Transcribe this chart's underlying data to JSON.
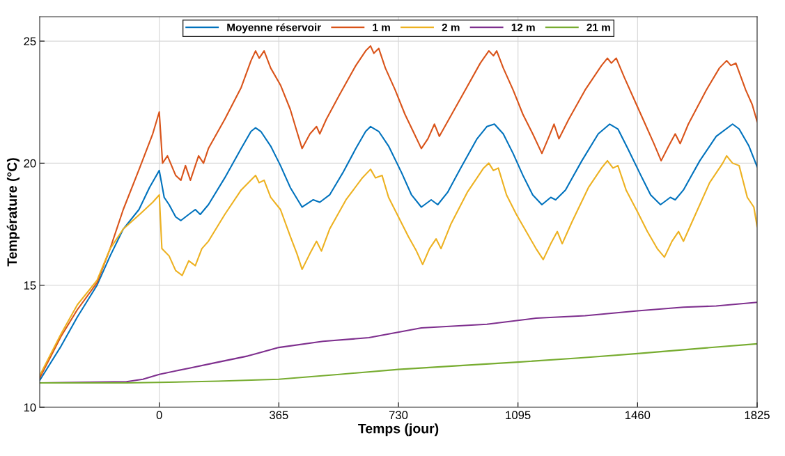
{
  "chart_data": {
    "type": "line",
    "xlabel": "Temps (jour)",
    "ylabel": "Température (°C)",
    "xlim": [
      -365,
      1825
    ],
    "ylim": [
      10,
      26
    ],
    "xticks": [
      0,
      365,
      730,
      1095,
      1460,
      1825
    ],
    "yticks": [
      10,
      15,
      20,
      25
    ],
    "grid": true,
    "legend": "top",
    "line_style": "solid",
    "marker": "none",
    "series": [
      {
        "name": "Moyenne réservoir",
        "color": "#0072bd",
        "x": [
          -365,
          -300,
          -250,
          -190,
          -150,
          -110,
          -62,
          -30,
          0,
          15,
          30,
          50,
          66,
          90,
          110,
          125,
          150,
          200,
          250,
          280,
          294,
          310,
          340,
          370,
          400,
          436,
          470,
          490,
          520,
          560,
          600,
          630,
          645,
          670,
          700,
          740,
          770,
          800,
          830,
          850,
          880,
          920,
          970,
          1000,
          1023,
          1050,
          1080,
          1110,
          1140,
          1168,
          1195,
          1210,
          1240,
          1290,
          1340,
          1375,
          1400,
          1430,
          1470,
          1500,
          1530,
          1560,
          1575,
          1600,
          1650,
          1700,
          1750,
          1770,
          1800,
          1825
        ],
        "values": [
          11.1,
          12.5,
          13.7,
          15.0,
          16.2,
          17.3,
          18.1,
          19.0,
          19.7,
          18.6,
          18.3,
          17.8,
          17.65,
          17.9,
          18.1,
          17.9,
          18.3,
          19.4,
          20.6,
          21.3,
          21.45,
          21.3,
          20.7,
          19.9,
          19.0,
          18.2,
          18.5,
          18.4,
          18.7,
          19.6,
          20.6,
          21.3,
          21.5,
          21.3,
          20.7,
          19.6,
          18.7,
          18.2,
          18.5,
          18.3,
          18.8,
          19.8,
          21.0,
          21.5,
          21.6,
          21.2,
          20.4,
          19.5,
          18.7,
          18.3,
          18.6,
          18.5,
          18.9,
          20.1,
          21.2,
          21.6,
          21.4,
          20.6,
          19.5,
          18.7,
          18.3,
          18.6,
          18.5,
          18.9,
          20.1,
          21.1,
          21.6,
          21.4,
          20.7,
          19.85
        ]
      },
      {
        "name": "1 m",
        "color": "#d95319",
        "x": [
          -365,
          -300,
          -250,
          -190,
          -150,
          -110,
          -60,
          -20,
          0,
          10,
          25,
          50,
          66,
          80,
          95,
          120,
          135,
          150,
          200,
          250,
          280,
          294,
          305,
          320,
          340,
          370,
          400,
          420,
          436,
          460,
          480,
          490,
          510,
          550,
          600,
          630,
          645,
          655,
          670,
          690,
          720,
          750,
          775,
          800,
          820,
          840,
          855,
          880,
          930,
          980,
          1006,
          1020,
          1030,
          1050,
          1080,
          1110,
          1140,
          1168,
          1190,
          1205,
          1220,
          1250,
          1300,
          1350,
          1368,
          1380,
          1395,
          1420,
          1450,
          1480,
          1510,
          1532,
          1555,
          1575,
          1590,
          1615,
          1670,
          1710,
          1732,
          1745,
          1760,
          1790,
          1810,
          1825
        ],
        "values": [
          11.2,
          12.9,
          14.0,
          15.1,
          16.5,
          18.1,
          19.8,
          21.2,
          22.1,
          20.0,
          20.3,
          19.5,
          19.3,
          19.9,
          19.3,
          20.3,
          20.0,
          20.6,
          21.8,
          23.1,
          24.2,
          24.6,
          24.3,
          24.6,
          23.9,
          23.2,
          22.2,
          21.3,
          20.6,
          21.2,
          21.5,
          21.2,
          21.8,
          22.8,
          24.0,
          24.6,
          24.8,
          24.5,
          24.7,
          23.9,
          23.0,
          22.0,
          21.3,
          20.6,
          21.0,
          21.6,
          21.1,
          21.7,
          22.9,
          24.1,
          24.6,
          24.4,
          24.6,
          23.9,
          23.0,
          22.0,
          21.2,
          20.4,
          21.1,
          21.6,
          21.0,
          21.8,
          23.0,
          24.0,
          24.3,
          24.1,
          24.3,
          23.5,
          22.6,
          21.7,
          20.8,
          20.1,
          20.7,
          21.2,
          20.8,
          21.6,
          23.0,
          23.9,
          24.2,
          24.0,
          24.1,
          23.0,
          22.4,
          21.7
        ]
      },
      {
        "name": "2 m",
        "color": "#edb120",
        "x": [
          -365,
          -300,
          -250,
          -190,
          -150,
          -110,
          -60,
          -20,
          0,
          8,
          30,
          50,
          70,
          90,
          110,
          130,
          150,
          200,
          250,
          294,
          305,
          320,
          340,
          370,
          400,
          420,
          436,
          460,
          480,
          495,
          520,
          570,
          620,
          645,
          660,
          680,
          700,
          730,
          760,
          785,
          804,
          825,
          845,
          860,
          890,
          940,
          990,
          1006,
          1020,
          1035,
          1060,
          1090,
          1120,
          1150,
          1172,
          1195,
          1215,
          1230,
          1260,
          1310,
          1350,
          1368,
          1385,
          1400,
          1425,
          1460,
          1490,
          1520,
          1542,
          1565,
          1585,
          1600,
          1630,
          1680,
          1720,
          1732,
          1750,
          1770,
          1795,
          1815,
          1825
        ],
        "values": [
          11.3,
          13.0,
          14.2,
          15.2,
          16.5,
          17.3,
          17.9,
          18.4,
          18.7,
          16.5,
          16.2,
          15.6,
          15.4,
          16.0,
          15.8,
          16.5,
          16.8,
          17.9,
          18.9,
          19.5,
          19.2,
          19.3,
          18.6,
          18.1,
          17.0,
          16.3,
          15.65,
          16.3,
          16.8,
          16.4,
          17.3,
          18.5,
          19.4,
          19.75,
          19.4,
          19.5,
          18.6,
          17.8,
          17.0,
          16.4,
          15.85,
          16.5,
          16.9,
          16.5,
          17.5,
          18.8,
          19.8,
          20.0,
          19.7,
          19.8,
          18.7,
          17.9,
          17.2,
          16.5,
          16.05,
          16.7,
          17.2,
          16.7,
          17.6,
          19.0,
          19.8,
          20.1,
          19.8,
          19.9,
          18.9,
          18.0,
          17.2,
          16.5,
          16.15,
          16.8,
          17.2,
          16.8,
          17.7,
          19.2,
          20.0,
          20.3,
          20.0,
          19.9,
          18.6,
          18.2,
          17.4
        ]
      },
      {
        "name": "12 m",
        "color": "#7e2f8e",
        "x": [
          -365,
          -100,
          -50,
          0,
          90,
          180,
          270,
          365,
          500,
          640,
          800,
          1000,
          1150,
          1300,
          1460,
          1600,
          1700,
          1825
        ],
        "values": [
          11.0,
          11.05,
          11.15,
          11.35,
          11.6,
          11.85,
          12.1,
          12.45,
          12.7,
          12.85,
          13.25,
          13.4,
          13.65,
          13.75,
          13.95,
          14.1,
          14.15,
          14.3
        ]
      },
      {
        "name": "21 m",
        "color": "#77ac30",
        "x": [
          -365,
          -100,
          0,
          180,
          365,
          550,
          730,
          910,
          1095,
          1280,
          1460,
          1640,
          1825
        ],
        "values": [
          11.0,
          11.0,
          11.02,
          11.07,
          11.15,
          11.35,
          11.55,
          11.7,
          11.85,
          12.02,
          12.2,
          12.4,
          12.6
        ]
      }
    ]
  }
}
